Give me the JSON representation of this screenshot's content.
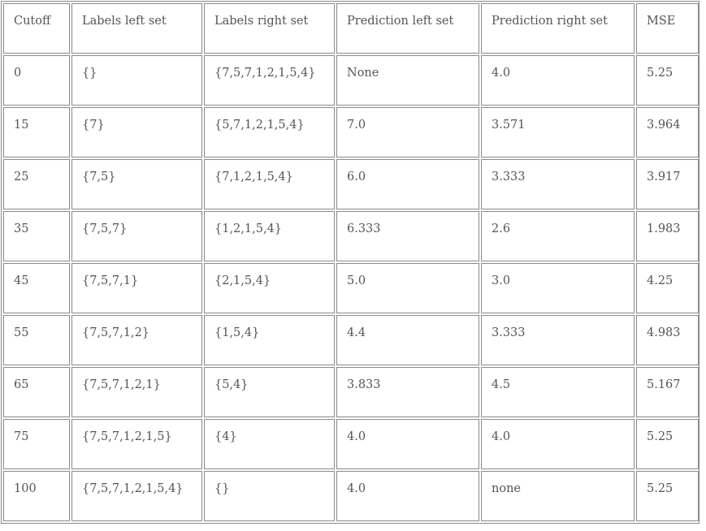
{
  "table": {
    "headers": [
      "Cutoff",
      "Labels left set",
      "Labels right set",
      "Prediction left set",
      "Prediction right set",
      "MSE"
    ],
    "rows": [
      [
        "0",
        "{}",
        "{7,5,7,1,2,1,5,4}",
        "None",
        "4.0",
        "5.25"
      ],
      [
        "15",
        "{7}",
        "{5,7,1,2,1,5,4}",
        "7.0",
        "3.571",
        "3.964"
      ],
      [
        "25",
        "{7,5}",
        "{7,1,2,1,5,4}",
        "6.0",
        "3.333",
        "3.917"
      ],
      [
        "35",
        "{7,5,7}",
        "{1,2,1,5,4}",
        "6.333",
        "2.6",
        "1.983"
      ],
      [
        "45",
        "{7,5,7,1}",
        "{2,1,5,4}",
        "5.0",
        "3.0",
        "4.25"
      ],
      [
        "55",
        "{7,5,7,1,2}",
        "{1,5,4}",
        "4.4",
        "3.333",
        "4.983"
      ],
      [
        "65",
        "{7,5,7,1,2,1}",
        "{5,4}",
        "3.833",
        "4.5",
        "5.167"
      ],
      [
        "75",
        "{7,5,7,1,2,1,5}",
        "{4}",
        "4.0",
        "4.0",
        "5.25"
      ],
      [
        "100",
        "{7,5,7,1,2,1,5,4}",
        "{}",
        "4.0",
        "none",
        "5.25"
      ]
    ]
  }
}
